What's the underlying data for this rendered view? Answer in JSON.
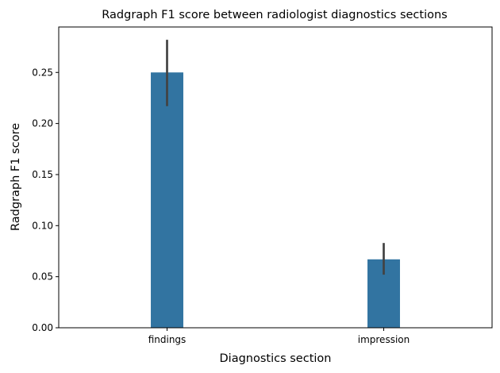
{
  "chart_data": {
    "type": "bar",
    "title": "Radgraph F1 score between radiologist diagnostics sections",
    "xlabel": "Diagnostics section",
    "ylabel": "Radgraph F1 score",
    "categories": [
      "findings",
      "impression"
    ],
    "values": [
      0.25,
      0.067
    ],
    "error_low": [
      0.217,
      0.052
    ],
    "error_high": [
      0.282,
      0.083
    ],
    "ylim": [
      0,
      0.2945
    ],
    "yticks": [
      "0.00",
      "0.05",
      "0.10",
      "0.15",
      "0.20",
      "0.25"
    ],
    "grid": false,
    "bar_color": "#3274a1",
    "error_color": "#424242"
  }
}
